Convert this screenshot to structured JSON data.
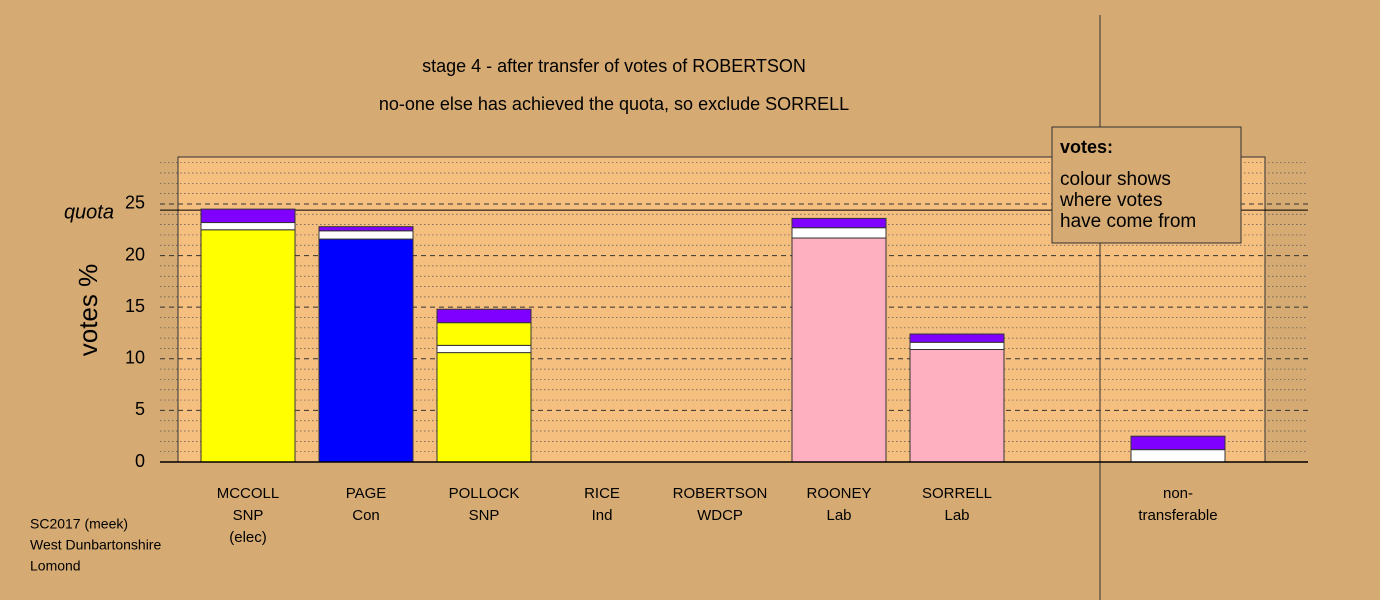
{
  "chart_data": {
    "type": "stacked-bar",
    "title": "stage 4 - after transfer of votes of ROBERTSON",
    "subtitle": "no-one else has achieved the quota, so exclude SORRELL",
    "y_label": "votes %",
    "ylim": [
      0,
      29.55
    ],
    "yticks": [
      0,
      5,
      10,
      15,
      20,
      25
    ],
    "yminorticks": [
      1,
      2,
      3,
      4,
      6,
      7,
      8,
      9,
      11,
      12,
      13,
      14,
      16,
      17,
      18,
      19,
      21,
      22,
      23,
      24,
      26,
      27,
      28,
      29
    ],
    "grid": true,
    "quota": {
      "label": "quota",
      "value": 24.4
    },
    "bars": [
      {
        "label": [
          "MCCOLL",
          "SNP",
          "(elec)"
        ],
        "segments": [
          {
            "value": 22.5,
            "color": "#ffff00"
          },
          {
            "value": 0.7,
            "color": "#ffffff"
          },
          {
            "value": 1.3,
            "color": "#8000ff"
          }
        ]
      },
      {
        "label": [
          "PAGE",
          "Con"
        ],
        "segments": [
          {
            "value": 21.6,
            "color": "#0000ff"
          },
          {
            "value": 0.8,
            "color": "#ffffff"
          },
          {
            "value": 0.4,
            "color": "#8000ff"
          }
        ]
      },
      {
        "label": [
          "POLLOCK",
          "SNP"
        ],
        "segments": [
          {
            "value": 10.6,
            "color": "#ffff00"
          },
          {
            "value": 0.7,
            "color": "#ffffff"
          },
          {
            "value": 2.2,
            "color": "#ffff00"
          },
          {
            "value": 1.3,
            "color": "#8000ff"
          }
        ]
      },
      {
        "label": [
          "RICE",
          "Ind"
        ],
        "segments": []
      },
      {
        "label": [
          "ROBERTSON",
          "WDCP"
        ],
        "segments": []
      },
      {
        "label": [
          "ROONEY",
          "Lab"
        ],
        "segments": [
          {
            "value": 21.7,
            "color": "#ffb0c0"
          },
          {
            "value": 1.0,
            "color": "#ffffff"
          },
          {
            "value": 0.9,
            "color": "#8000ff"
          }
        ]
      },
      {
        "label": [
          "SORRELL",
          "Lab"
        ],
        "segments": [
          {
            "value": 10.9,
            "color": "#ffb0c0"
          },
          {
            "value": 0.7,
            "color": "#ffffff"
          },
          {
            "value": 0.8,
            "color": "#8000ff"
          }
        ]
      },
      {
        "label": [
          "non-",
          "transferable"
        ],
        "segments": [
          {
            "value": 1.2,
            "color": "#ffffff"
          },
          {
            "value": 1.3,
            "color": "#8000ff"
          }
        ]
      }
    ],
    "legend": {
      "title": "votes:",
      "lines": [
        "colour shows",
        "where votes",
        "have come from"
      ]
    },
    "footer": [
      "SC2017 (meek)",
      "West Dunbartonshire",
      "Lomond"
    ]
  }
}
